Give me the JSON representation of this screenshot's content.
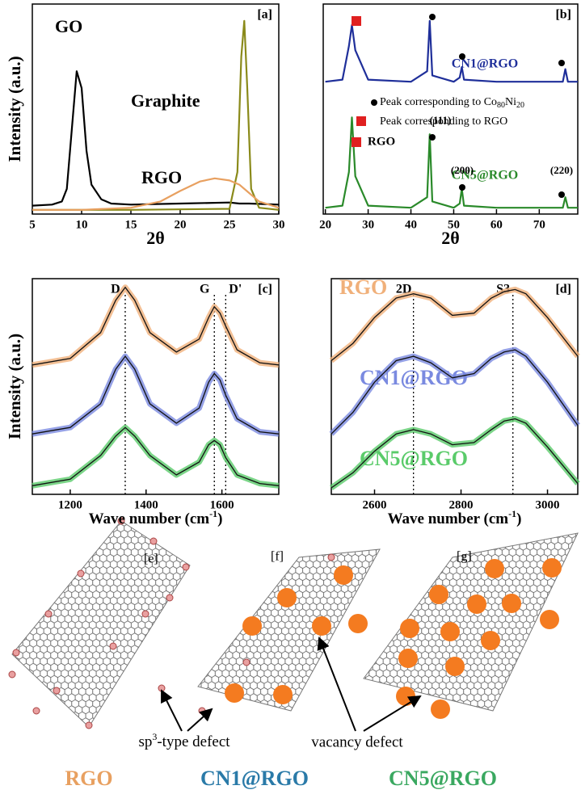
{
  "chart_data": [
    {
      "type": "line",
      "panel": "[a]",
      "xlabel": "2θ",
      "ylabel": "Intensity (a.u.)",
      "xlim": [
        5,
        30
      ],
      "xticks": [
        5,
        10,
        15,
        20,
        25,
        30
      ],
      "ylim": [
        0,
        100
      ],
      "series": [
        {
          "name": "GO",
          "color": "#000000",
          "x": [
            5,
            7,
            8,
            8.5,
            9,
            9.5,
            10,
            10.5,
            11,
            12,
            13,
            15,
            20,
            25,
            26,
            27,
            30
          ],
          "values": [
            4,
            4.5,
            6,
            12,
            40,
            68,
            60,
            30,
            14,
            7,
            5,
            4.5,
            5,
            5.5,
            5,
            5,
            4.5
          ]
        },
        {
          "name": "Graphite",
          "color": "#8a8a1a",
          "x": [
            5,
            15,
            25,
            25.8,
            26.2,
            26.5,
            26.8,
            27.2,
            28,
            30
          ],
          "values": [
            2,
            2,
            2.5,
            20,
            75,
            92,
            60,
            12,
            3,
            2
          ]
        },
        {
          "name": "RGO",
          "color": "#e8a060",
          "x": [
            5,
            10,
            15,
            18,
            20,
            22,
            23.5,
            25,
            26,
            27,
            28,
            30
          ],
          "values": [
            2,
            2,
            3,
            6,
            11,
            15.5,
            17,
            16,
            14,
            10,
            6,
            3
          ]
        }
      ]
    },
    {
      "type": "line",
      "panel": "[b]",
      "xlabel": "2θ",
      "xlim": [
        19.5,
        79
      ],
      "xticks": [
        20,
        30,
        40,
        50,
        60,
        70
      ],
      "ylim": [
        0,
        100
      ],
      "series": [
        {
          "name": "CN1@RGO",
          "color": "#1f2f9a",
          "x": [
            20,
            24,
            25.5,
            26.2,
            27,
            30,
            40,
            43.8,
            44.4,
            45,
            50,
            51.4,
            51.9,
            52.4,
            60,
            75.5,
            76.1,
            76.7,
            79
          ],
          "values": [
            63,
            64,
            80,
            90,
            78,
            64,
            63,
            68,
            92,
            66,
            63,
            65,
            70,
            64,
            63,
            63,
            69,
            63,
            63
          ]
        },
        {
          "name": "CN5@RGO",
          "color": "#2a8a2a",
          "x": [
            20,
            24,
            25.5,
            26.2,
            27,
            30,
            40,
            43.8,
            44.4,
            45,
            50,
            51.4,
            51.9,
            52.4,
            60,
            75.5,
            76.1,
            76.7,
            79
          ],
          "values": [
            3,
            4,
            20,
            46,
            18,
            4,
            3,
            8,
            38,
            6,
            3,
            5,
            12,
            4,
            3,
            3,
            8,
            3,
            3
          ]
        }
      ],
      "annotations": [
        "RGO",
        "(111)",
        "(200)",
        "(220)"
      ],
      "key": [
        [
          "Peak corresponding to Co",
          "80",
          "Ni",
          "20"
        ],
        [
          "Peak corresponding to RGO"
        ]
      ]
    },
    {
      "type": "line",
      "panel": "[c]",
      "xlabel": [
        "Wave number (cm",
        "-1",
        ")"
      ],
      "ylabel": "Intensity (a.u.)",
      "xlim": [
        1100,
        1750
      ],
      "xticks": [
        1200,
        1400,
        1600
      ],
      "ylim": [
        0,
        100
      ],
      "peak_lines": [
        {
          "label": "D",
          "x": 1345
        },
        {
          "label": "G",
          "x": 1580
        },
        {
          "label": "D'",
          "x": 1610
        }
      ],
      "series": [
        {
          "name": "RGO",
          "color": "#f0b07a",
          "x": [
            1100,
            1200,
            1280,
            1320,
            1345,
            1370,
            1410,
            1480,
            1540,
            1565,
            1580,
            1595,
            1610,
            1640,
            1700,
            1750
          ],
          "values": [
            60,
            63,
            75,
            90,
            96,
            90,
            75,
            66,
            72,
            82,
            87,
            84,
            78,
            67,
            61,
            60
          ]
        },
        {
          "name": "CN1@RGO",
          "color": "#7a8ae0",
          "x": [
            1100,
            1200,
            1280,
            1320,
            1345,
            1370,
            1410,
            1480,
            1540,
            1565,
            1580,
            1595,
            1610,
            1640,
            1700,
            1750
          ],
          "values": [
            28,
            31,
            42,
            58,
            64,
            58,
            42,
            33,
            40,
            52,
            56,
            53,
            46,
            35,
            29,
            28
          ]
        },
        {
          "name": "CN5@RGO",
          "color": "#5acb6a",
          "x": [
            1100,
            1200,
            1280,
            1320,
            1345,
            1370,
            1410,
            1480,
            1540,
            1565,
            1580,
            1595,
            1610,
            1640,
            1700,
            1750
          ],
          "values": [
            4,
            7,
            18,
            27,
            31,
            27,
            18,
            9,
            15,
            23,
            25,
            23,
            17,
            9,
            5,
            4
          ]
        }
      ]
    },
    {
      "type": "line",
      "panel": "[d]",
      "xlabel": [
        "Wave number (cm",
        "-1",
        ")"
      ],
      "xlim": [
        2500,
        3070
      ],
      "xticks": [
        2600,
        2800,
        3000
      ],
      "ylim": [
        0,
        100
      ],
      "peak_lines": [
        {
          "label": "2D",
          "x": 2690
        },
        {
          "label": "S3",
          "x": 2920
        }
      ],
      "series": [
        {
          "color": "#f0b07a",
          "x": [
            2500,
            2550,
            2600,
            2650,
            2690,
            2730,
            2780,
            2830,
            2870,
            2900,
            2925,
            2950,
            3000,
            3070
          ],
          "values": [
            62,
            70,
            82,
            91,
            93,
            91,
            83,
            84,
            91,
            94,
            95,
            93,
            82,
            64
          ]
        },
        {
          "color": "#7a8ae0",
          "x": [
            2500,
            2550,
            2600,
            2650,
            2690,
            2730,
            2780,
            2830,
            2870,
            2900,
            2925,
            2950,
            3000,
            3070
          ],
          "values": [
            28,
            38,
            52,
            62,
            64,
            61,
            54,
            56,
            63,
            66,
            67,
            64,
            52,
            32
          ]
        },
        {
          "color": "#5acb6a",
          "x": [
            2500,
            2550,
            2600,
            2650,
            2690,
            2730,
            2780,
            2830,
            2870,
            2900,
            2925,
            2950,
            3000,
            3070
          ],
          "values": [
            3,
            10,
            20,
            28,
            30,
            28,
            23,
            24,
            30,
            34,
            35,
            33,
            22,
            5
          ]
        }
      ]
    }
  ],
  "diagram": {
    "panels": [
      "[e]",
      "[f]",
      "[g]"
    ],
    "sp3_label": [
      "sp",
      "3",
      "-type defect"
    ],
    "vacancy_label": "vacancy defect"
  },
  "legend": [
    {
      "text": "RGO",
      "color": "#e8a060"
    },
    {
      "text": "CN1@RGO",
      "color": "#2a7aa8"
    },
    {
      "text": "CN5@RGO",
      "color": "#3aa860"
    }
  ]
}
